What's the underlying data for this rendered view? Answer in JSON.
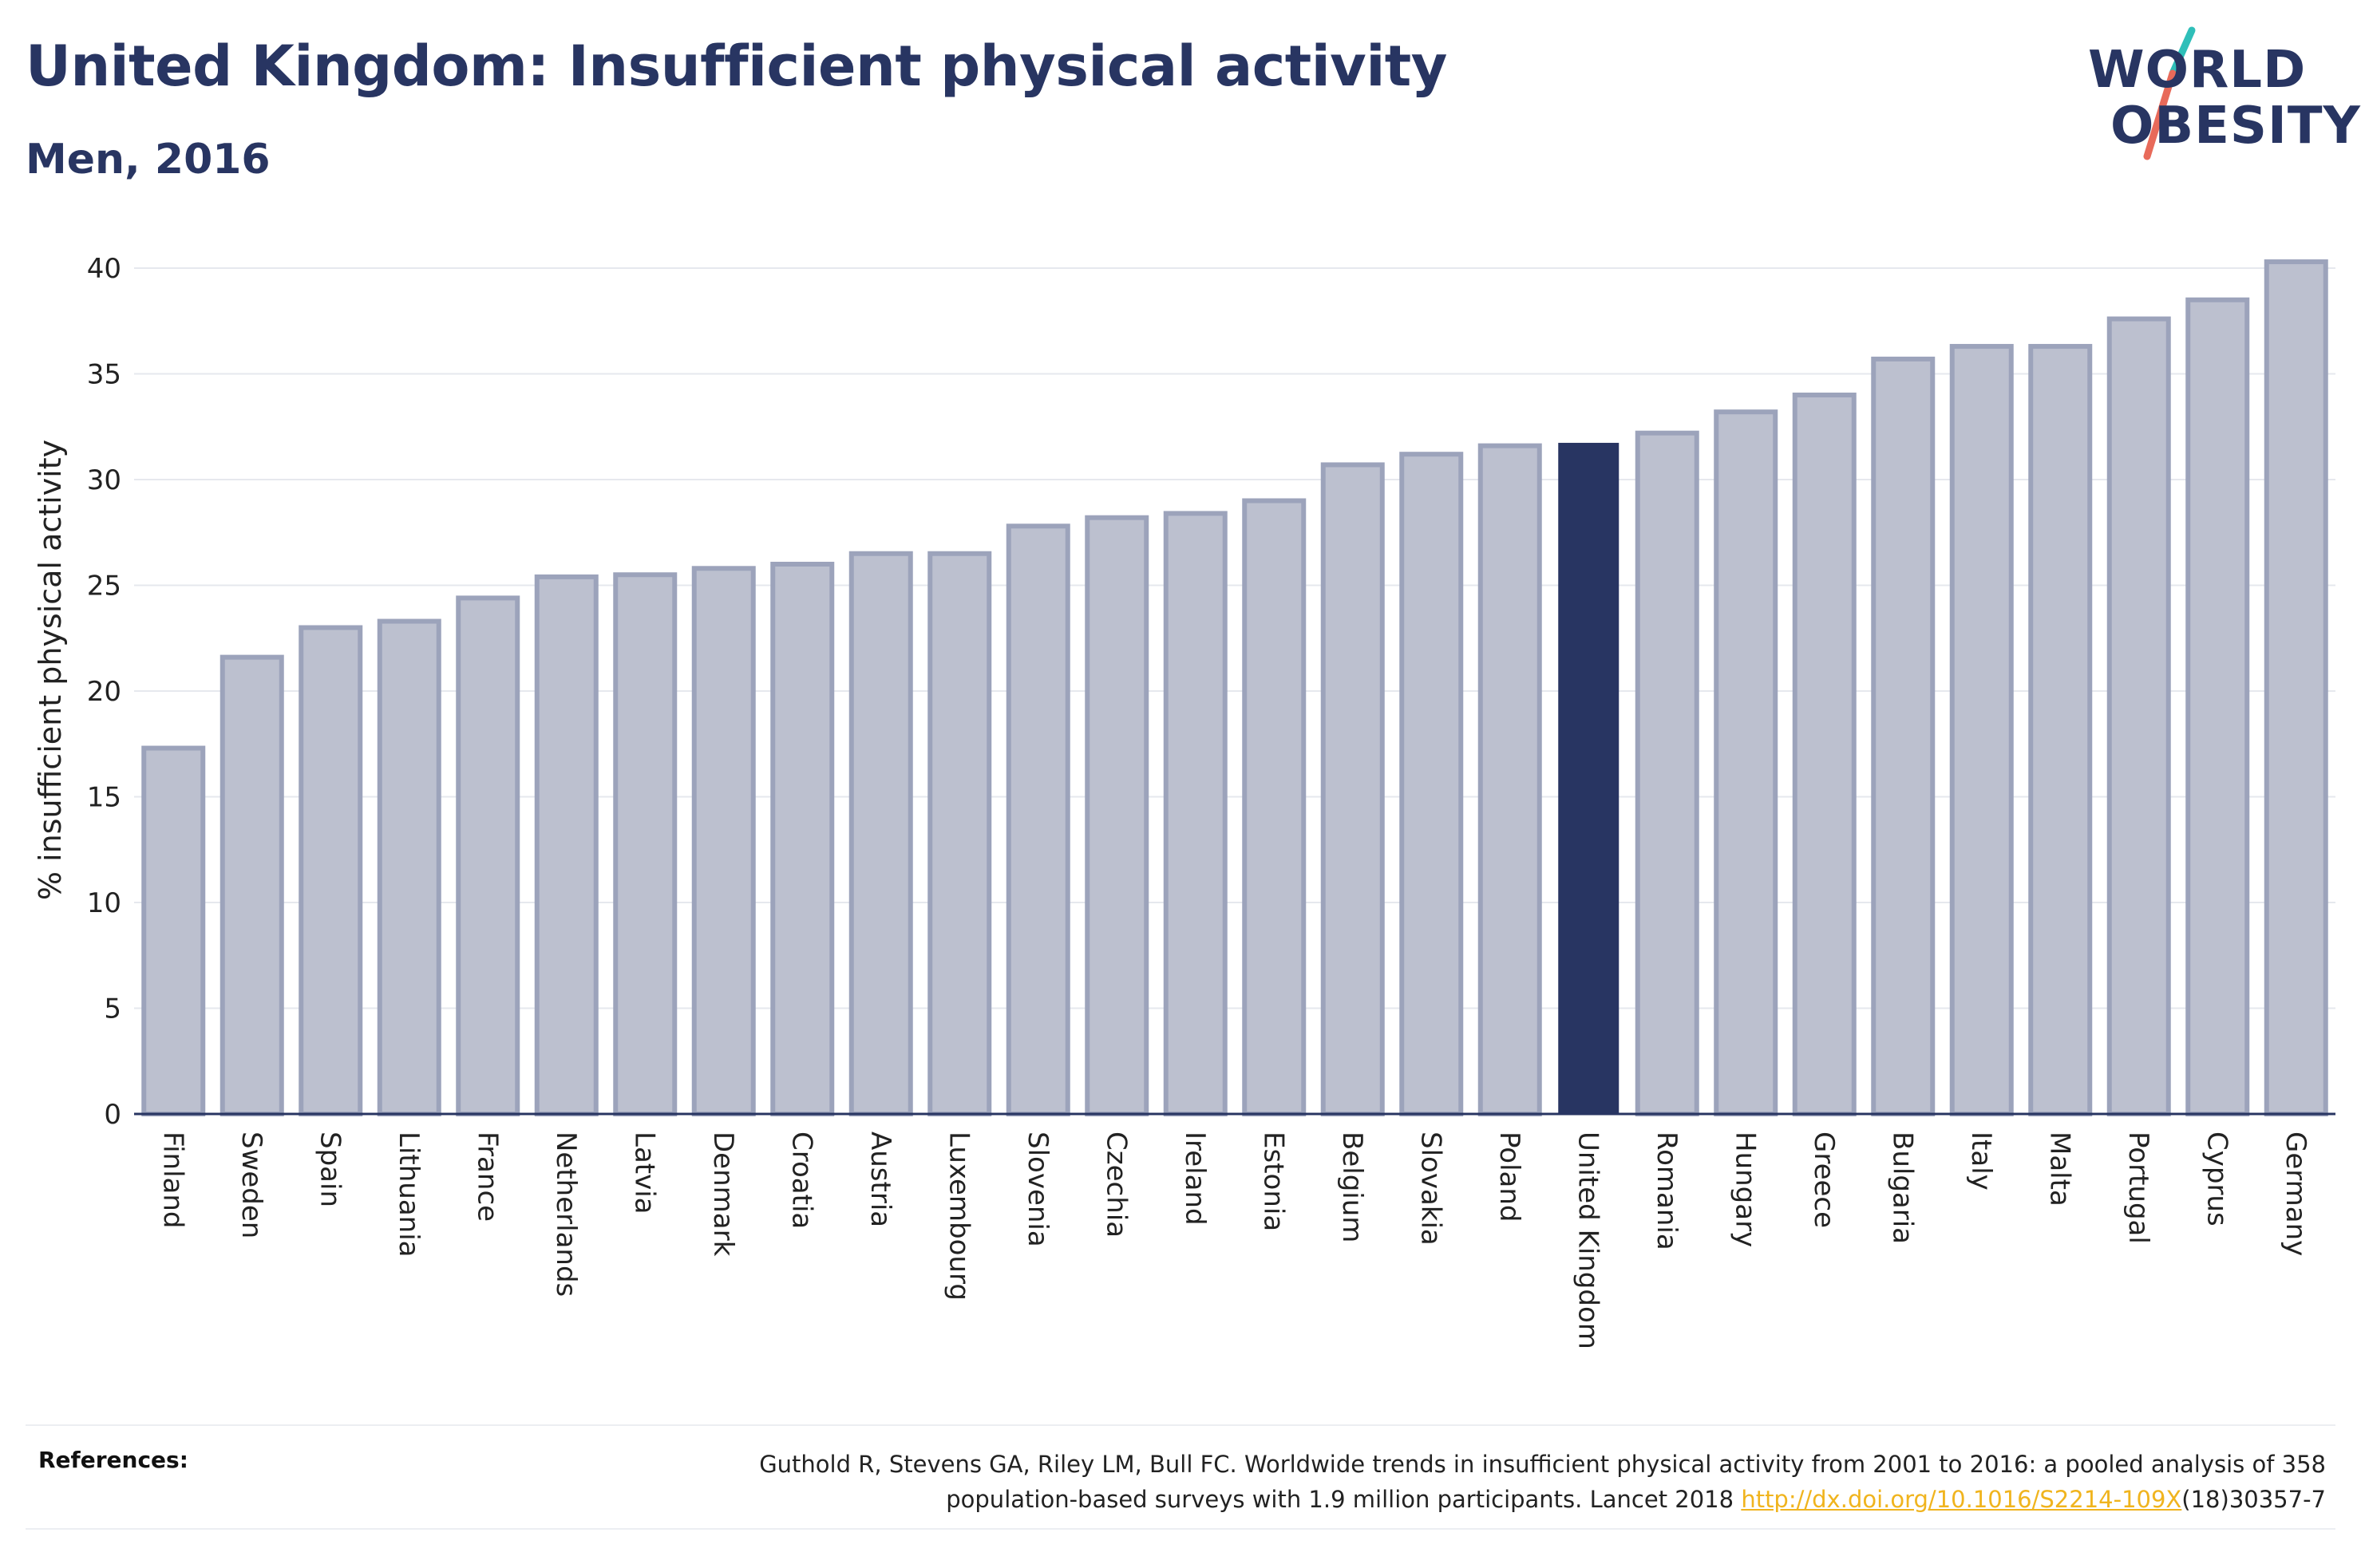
{
  "header": {
    "title": "United Kingdom: Insufficient physical activity",
    "subtitle": "Men, 2016"
  },
  "logo": {
    "line1": "WORLD",
    "line2": "OBESITY",
    "accent_colors": [
      "#2fbfb9",
      "#e86a5a"
    ]
  },
  "colors": {
    "bar": "#bcc0cf",
    "bar_stroke": "#9ca3bb",
    "highlight": "#283562",
    "text": "#283562",
    "grid": "#e6e8ee",
    "link": "#f0b41e"
  },
  "chart_data": {
    "type": "bar",
    "title": "United Kingdom: Insufficient physical activity",
    "subtitle": "Men, 2016",
    "xlabel": "",
    "ylabel": "% insufficient physical activity",
    "ylim": [
      0,
      42
    ],
    "yticks": [
      0,
      5,
      10,
      15,
      20,
      25,
      30,
      35,
      40
    ],
    "grid": true,
    "highlight": "United Kingdom",
    "categories": [
      "Finland",
      "Sweden",
      "Spain",
      "Lithuania",
      "France",
      "Netherlands",
      "Latvia",
      "Denmark",
      "Croatia",
      "Austria",
      "Luxembourg",
      "Slovenia",
      "Czechia",
      "Ireland",
      "Estonia",
      "Belgium",
      "Slovakia",
      "Poland",
      "United Kingdom",
      "Romania",
      "Hungary",
      "Greece",
      "Bulgaria",
      "Italy",
      "Malta",
      "Portugal",
      "Cyprus",
      "Germany"
    ],
    "values": [
      17.3,
      21.6,
      23.0,
      23.3,
      24.4,
      25.4,
      25.5,
      25.8,
      26.0,
      26.5,
      26.5,
      27.8,
      28.2,
      28.4,
      29.0,
      30.7,
      31.2,
      31.6,
      31.7,
      32.2,
      33.2,
      34.0,
      35.7,
      36.3,
      36.3,
      37.6,
      38.5,
      40.3
    ]
  },
  "references": {
    "label": "References:",
    "text_line1": "Guthold R, Stevens GA, Riley LM, Bull FC. Worldwide trends in insufficient physical activity from 2001 to 2016: a pooled analysis of 358",
    "text_line2_before": "population-based surveys with 1.9 million participants. Lancet 2018 ",
    "link_text": "http://dx.doi.org/10.1016/S2214-109X",
    "text_line2_after": "(18)30357-7"
  }
}
